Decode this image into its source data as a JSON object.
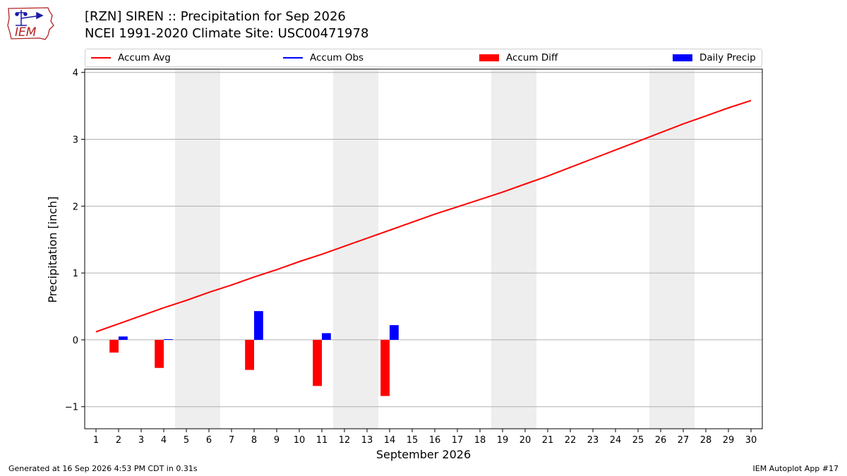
{
  "header": {
    "title_line1": "[RZN] SIREN :: Precipitation for Sep 2026",
    "title_line2": "NCEI 1991-2020 Climate Site: USC00471978",
    "logo_text": "IEM"
  },
  "footer": {
    "generated": "Generated at 16 Sep 2026 4:53 PM CDT in 0.31s",
    "app": "IEM Autoplot App #17"
  },
  "colors": {
    "accum_avg": "#ff0000",
    "accum_obs": "#0000ff",
    "accum_diff": "#ff0000",
    "daily_precip": "#0000ff",
    "weekend_shade": "#eeeeee",
    "grid": "#b0b0b0"
  },
  "chart_data": {
    "type": "bar",
    "xlabel": "September 2026",
    "ylabel": "Precipitation [inch]",
    "xlim": [
      0.5,
      30.5
    ],
    "ylim": [
      -1.33,
      4.05
    ],
    "y_ticks": [
      -1,
      0,
      1,
      2,
      3,
      4
    ],
    "y_tick_labels": [
      "−1",
      "0",
      "1",
      "2",
      "3",
      "4"
    ],
    "x_ticks": [
      1,
      2,
      3,
      4,
      5,
      6,
      7,
      8,
      9,
      10,
      11,
      12,
      13,
      14,
      15,
      16,
      17,
      18,
      19,
      20,
      21,
      22,
      23,
      24,
      25,
      26,
      27,
      28,
      29,
      30
    ],
    "grid": "horizontal",
    "legend_position": "top",
    "shaded_weekends": [
      [
        5,
        6
      ],
      [
        12,
        13
      ],
      [
        19,
        20
      ],
      [
        26,
        27
      ]
    ],
    "legend": [
      {
        "label": "Accum Avg",
        "kind": "line",
        "color": "#ff0000"
      },
      {
        "label": "Accum Obs",
        "kind": "line",
        "color": "#0000ff"
      },
      {
        "label": "Accum Diff",
        "kind": "bar",
        "color": "#ff0000"
      },
      {
        "label": "Daily Precip",
        "kind": "bar",
        "color": "#0000ff"
      }
    ],
    "accum_avg": {
      "x": [
        1,
        2,
        3,
        4,
        5,
        6,
        7,
        8,
        9,
        10,
        11,
        12,
        13,
        14,
        15,
        16,
        17,
        18,
        19,
        20,
        21,
        22,
        23,
        24,
        25,
        26,
        27,
        28,
        29,
        30
      ],
      "y": [
        0.12,
        0.24,
        0.36,
        0.48,
        0.59,
        0.71,
        0.82,
        0.94,
        1.05,
        1.17,
        1.28,
        1.4,
        1.52,
        1.64,
        1.76,
        1.88,
        1.99,
        2.1,
        2.21,
        2.33,
        2.45,
        2.58,
        2.71,
        2.84,
        2.97,
        3.1,
        3.23,
        3.35,
        3.47,
        3.58
      ]
    },
    "accum_diff": {
      "x": [
        2,
        4,
        8,
        11,
        14
      ],
      "y": [
        -0.19,
        -0.42,
        -0.45,
        -0.69,
        -0.84
      ]
    },
    "daily_precip": {
      "x": [
        2,
        4,
        8,
        11,
        14
      ],
      "y": [
        0.05,
        0.01,
        0.43,
        0.1,
        0.22
      ]
    }
  }
}
